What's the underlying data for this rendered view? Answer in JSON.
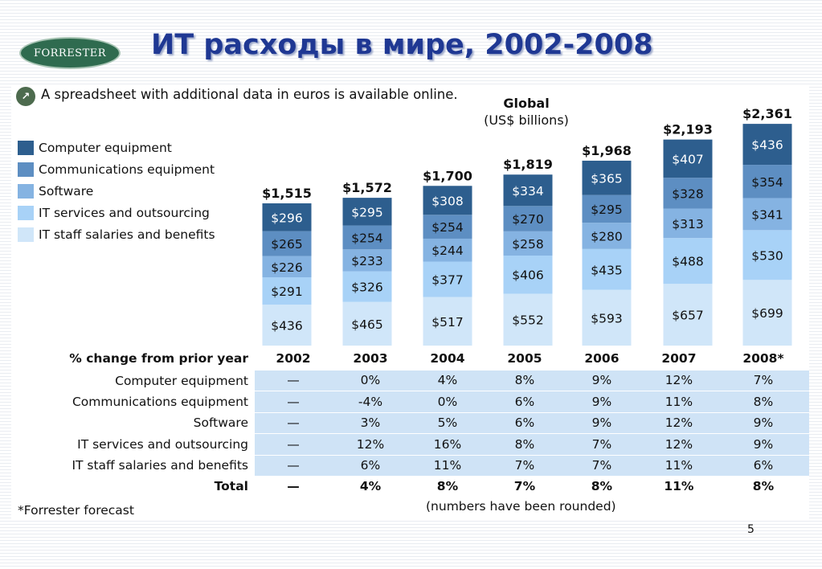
{
  "slide": {
    "logo_text": "FORRESTER",
    "title": "ИТ расходы в мире, 2002-2008",
    "info_text": "A spreadsheet with additional data in euros is available online.",
    "page_number": "5",
    "footnote": "*Forrester forecast",
    "rounded_note": "(numbers have been rounded)"
  },
  "colors": {
    "computer_equipment": "#2d5e8e",
    "communications_equipment": "#5d8ec2",
    "software": "#85b3e2",
    "it_services": "#a8d2f7",
    "it_staff": "#d0e6f9",
    "title": "#1f3893",
    "table_band": "#cfe3f6"
  },
  "chart_data": {
    "type": "bar",
    "stacked": true,
    "title": "Global",
    "subtitle": "(US$ billions)",
    "categories": [
      "2002",
      "2003",
      "2004",
      "2005",
      "2006",
      "2007",
      "2008*"
    ],
    "totals": [
      "$1,515",
      "$1,572",
      "$1,700",
      "$1,819",
      "$1,968",
      "$2,193",
      "$2,361"
    ],
    "series": [
      {
        "name": "IT staff salaries and benefits",
        "values": [
          436,
          465,
          517,
          552,
          593,
          657,
          699
        ]
      },
      {
        "name": "IT services and outsourcing",
        "values": [
          291,
          326,
          377,
          406,
          435,
          488,
          530
        ]
      },
      {
        "name": "Software",
        "values": [
          226,
          233,
          244,
          258,
          280,
          313,
          341
        ]
      },
      {
        "name": "Communications equipment",
        "values": [
          265,
          254,
          254,
          270,
          295,
          328,
          354
        ]
      },
      {
        "name": "Computer equipment",
        "values": [
          296,
          295,
          308,
          334,
          365,
          407,
          436
        ]
      }
    ],
    "legend": {
      "position": "left",
      "items": [
        {
          "label": "Computer equipment",
          "color": "#2d5e8e"
        },
        {
          "label": "Communications equipment",
          "color": "#5d8ec2"
        },
        {
          "label": "Software",
          "color": "#85b3e2"
        },
        {
          "label": "IT services and outsourcing",
          "color": "#a8d2f7"
        },
        {
          "label": "IT staff salaries and benefits",
          "color": "#d0e6f9"
        }
      ]
    },
    "value_prefix": "$",
    "grid": false
  },
  "change_table": {
    "header_label": "% change from prior year",
    "years": [
      "2002",
      "2003",
      "2004",
      "2005",
      "2006",
      "2007",
      "2008*"
    ],
    "rows": [
      {
        "label": "Computer equipment",
        "values": [
          "—",
          "0%",
          "4%",
          "8%",
          "9%",
          "12%",
          "7%"
        ]
      },
      {
        "label": "Communications equipment",
        "values": [
          "—",
          "-4%",
          "0%",
          "6%",
          "9%",
          "11%",
          "8%"
        ]
      },
      {
        "label": "Software",
        "values": [
          "—",
          "3%",
          "5%",
          "6%",
          "9%",
          "12%",
          "9%"
        ]
      },
      {
        "label": "IT services and outsourcing",
        "values": [
          "—",
          "12%",
          "16%",
          "8%",
          "7%",
          "12%",
          "9%"
        ]
      },
      {
        "label": "IT staff salaries and benefits",
        "values": [
          "—",
          "6%",
          "11%",
          "7%",
          "7%",
          "11%",
          "6%"
        ]
      }
    ],
    "total": {
      "label": "Total",
      "values": [
        "—",
        "4%",
        "8%",
        "7%",
        "8%",
        "11%",
        "8%"
      ]
    }
  }
}
